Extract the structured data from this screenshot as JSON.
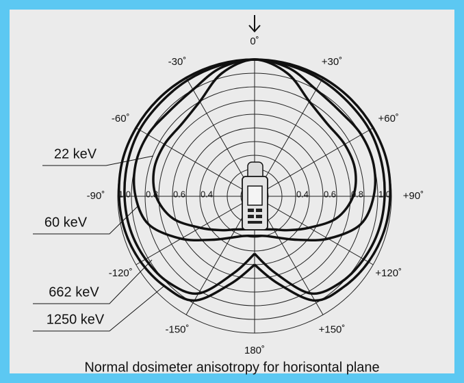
{
  "chart_data": {
    "type": "polar",
    "title": "Normal dosimeter anisotropy for horisontal plane",
    "theta": [
      -180,
      -165,
      -150,
      -135,
      -120,
      -105,
      -90,
      -75,
      -60,
      -45,
      -30,
      -15,
      0,
      15,
      30,
      45,
      60,
      75,
      90,
      105,
      120,
      135,
      150,
      165,
      180
    ],
    "series": [
      {
        "name": "22 keV",
        "color": "#111111",
        "values": [
          0.24,
          0.25,
          0.28,
          0.35,
          0.46,
          0.62,
          0.72,
          0.76,
          0.76,
          0.75,
          0.8,
          0.93,
          1,
          0.93,
          0.8,
          0.75,
          0.76,
          0.76,
          0.72,
          0.62,
          0.46,
          0.35,
          0.28,
          0.25,
          0.24
        ]
      },
      {
        "name": "60 keV",
        "color": "#111111",
        "values": [
          0.29,
          0.3,
          0.35,
          0.45,
          0.62,
          0.8,
          0.87,
          0.9,
          0.9,
          0.88,
          0.9,
          0.97,
          1,
          0.97,
          0.9,
          0.88,
          0.9,
          0.9,
          0.87,
          0.8,
          0.62,
          0.45,
          0.35,
          0.3,
          0.29
        ]
      },
      {
        "name": "662 keV",
        "color": "#111111",
        "values": [
          0.42,
          0.58,
          0.82,
          0.89,
          0.92,
          0.94,
          0.95,
          0.96,
          0.97,
          0.97,
          0.98,
          0.99,
          1,
          0.99,
          0.98,
          0.97,
          0.97,
          0.96,
          0.95,
          0.94,
          0.92,
          0.89,
          0.82,
          0.58,
          0.42
        ]
      },
      {
        "name": "1250 keV",
        "color": "#111111",
        "values": [
          0.5,
          0.66,
          0.88,
          0.93,
          0.96,
          0.98,
          0.99,
          1,
          1,
          1,
          1,
          1,
          1,
          1,
          1,
          1,
          1,
          1,
          0.99,
          0.98,
          0.96,
          0.93,
          0.88,
          0.66,
          0.5
        ]
      }
    ],
    "rlim": [
      0,
      1
    ],
    "rgrid": [
      0.1,
      0.2,
      0.3,
      0.4,
      0.5,
      0.6,
      0.7,
      0.8,
      0.9,
      1
    ],
    "rticks": [
      0.4,
      0.6,
      0.8,
      {
        "value": 1,
        "label": "1.0"
      }
    ],
    "thetaticks": [
      {
        "value": 0,
        "label": "0˚"
      },
      {
        "value": 30,
        "label": "+30˚"
      },
      {
        "value": 60,
        "label": "+60˚"
      },
      {
        "value": 90,
        "label": "+90˚"
      },
      {
        "value": 120,
        "label": "+120˚"
      },
      {
        "value": 150,
        "label": "+150˚"
      },
      {
        "value": 180,
        "label": "180˚"
      },
      {
        "value": -150,
        "label": "-150˚"
      },
      {
        "value": -120,
        "label": "-120˚"
      },
      {
        "value": -90,
        "label": "-90˚"
      },
      {
        "value": -60,
        "label": "-60˚"
      },
      {
        "value": -30,
        "label": "-30˚"
      }
    ]
  }
}
